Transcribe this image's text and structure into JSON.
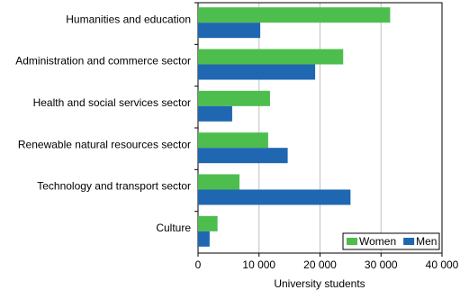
{
  "chart_data": {
    "type": "bar",
    "orientation": "horizontal",
    "x_label": "University students",
    "categories": [
      "Humanities and education",
      "Administration and commerce sector",
      "Health and social services sector",
      "Renewable natural resources sector",
      "Technology and transport sector",
      "Culture"
    ],
    "series": [
      {
        "name": "Women",
        "color": "#4dbe4d",
        "values": [
          31500,
          23800,
          11800,
          11500,
          6800,
          3200
        ]
      },
      {
        "name": "Men",
        "color": "#1f67b1",
        "values": [
          10200,
          19200,
          5600,
          14700,
          25000,
          1900
        ]
      }
    ],
    "xlim": [
      0,
      40000
    ],
    "xticks": [
      0,
      {
        "value": 10000,
        "label": "10 000"
      },
      {
        "value": 20000,
        "label": "20 000"
      },
      {
        "value": 30000,
        "label": "30 000"
      },
      {
        "value": 40000,
        "label": "40 000"
      }
    ],
    "grid": true,
    "legend": "bottom-right"
  }
}
